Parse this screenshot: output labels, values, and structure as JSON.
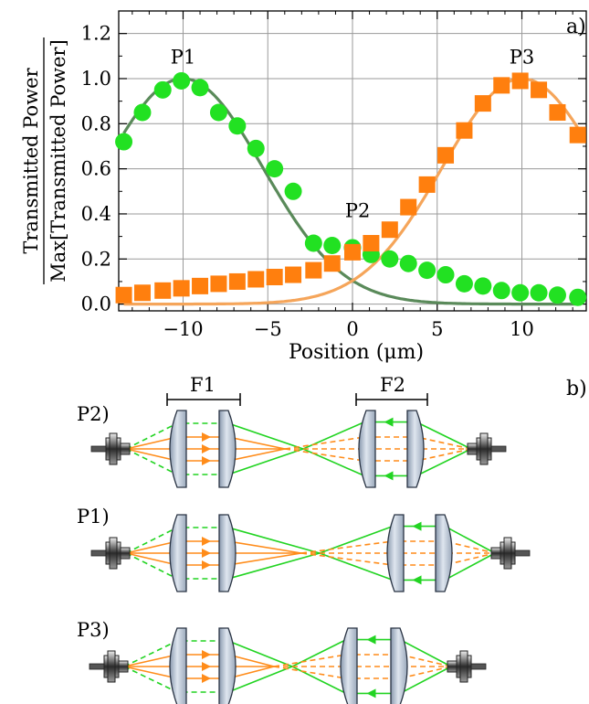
{
  "panel_a": {
    "label": "a)",
    "chart_data": {
      "type": "scatter",
      "xlabel": "Position (μm)",
      "ylabel_num": "Transmitted Power",
      "ylabel_den": "Max[Transmitted Power]",
      "xlim": [
        -13.8,
        13.8
      ],
      "ylim": [
        -0.03,
        1.3
      ],
      "xticks": [
        -10,
        -5,
        0,
        5,
        10
      ],
      "xtick_labels": [
        "−10",
        "−5",
        "0",
        "5",
        "10"
      ],
      "yticks": [
        0.0,
        0.2,
        0.4,
        0.6,
        0.8,
        1.0,
        1.2
      ],
      "ytick_labels": [
        "0.0",
        "0.2",
        "0.4",
        "0.6",
        "0.8",
        "1.0",
        "1.2"
      ],
      "grid": true,
      "annotations": [
        {
          "text": "P1",
          "x": -10,
          "y": 1.05
        },
        {
          "text": "P2",
          "x": 0.3,
          "y": 0.37
        },
        {
          "text": "P3",
          "x": 10,
          "y": 1.05
        }
      ],
      "series": [
        {
          "marker": "circle",
          "color": "#22e122",
          "x": [
            -13.5,
            -12.4,
            -11.2,
            -10.1,
            -9.0,
            -7.9,
            -6.8,
            -5.7,
            -4.6,
            -3.5,
            -2.3,
            -1.2,
            0.0,
            1.1,
            2.2,
            3.3,
            4.4,
            5.5,
            6.6,
            7.7,
            8.8,
            9.9,
            11.0,
            12.1,
            13.3
          ],
          "y": [
            0.72,
            0.85,
            0.95,
            0.99,
            0.96,
            0.85,
            0.79,
            0.69,
            0.6,
            0.5,
            0.27,
            0.26,
            0.25,
            0.22,
            0.2,
            0.18,
            0.15,
            0.13,
            0.09,
            0.08,
            0.06,
            0.05,
            0.05,
            0.04,
            0.03
          ]
        },
        {
          "marker": "square",
          "color": "#ff7f0e",
          "x": [
            -13.5,
            -12.4,
            -11.2,
            -10.1,
            -9.0,
            -7.9,
            -6.8,
            -5.7,
            -4.6,
            -3.5,
            -2.3,
            -1.2,
            0.0,
            1.1,
            2.2,
            3.3,
            4.4,
            5.5,
            6.6,
            7.7,
            8.8,
            9.9,
            11.0,
            12.1,
            13.3
          ],
          "y": [
            0.04,
            0.05,
            0.06,
            0.07,
            0.08,
            0.09,
            0.1,
            0.11,
            0.12,
            0.13,
            0.15,
            0.18,
            0.23,
            0.27,
            0.33,
            0.43,
            0.53,
            0.66,
            0.77,
            0.89,
            0.97,
            0.99,
            0.95,
            0.85,
            0.75
          ]
        }
      ],
      "fits": [
        {
          "color": "#5a8a5a",
          "center": -10.0,
          "amp": 1.0,
          "sigma": 4.7
        },
        {
          "color": "#f5a55a",
          "center": 10.0,
          "amp": 1.0,
          "sigma": 4.7
        }
      ]
    }
  },
  "panel_b": {
    "label": "b)",
    "f1_label": "F1",
    "f2_label": "F2",
    "rows": [
      {
        "label": "P2)"
      },
      {
        "label": "P1)"
      },
      {
        "label": "P3)"
      }
    ],
    "colors": {
      "orange": "#ff8c1a",
      "green": "#22d422",
      "lens": "#b8c4d6"
    }
  }
}
